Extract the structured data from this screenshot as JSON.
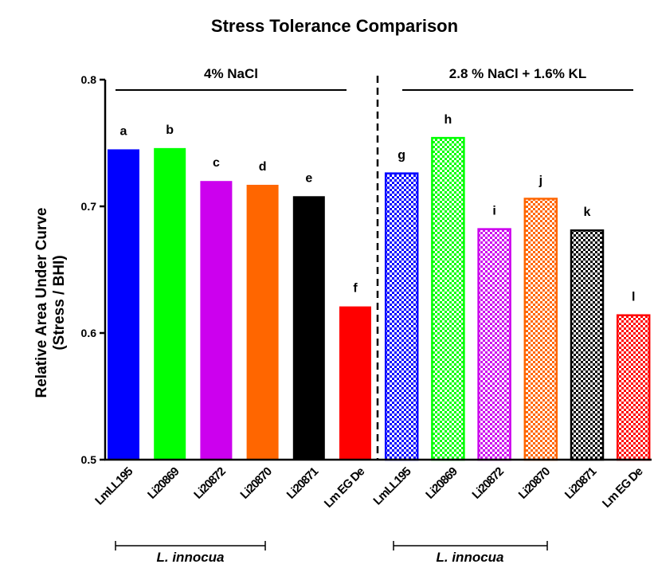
{
  "chart_data": {
    "type": "bar",
    "title": "Stress Tolerance Comparison",
    "y_label": [
      "Relative Area Under Curve",
      "(Stress / BHI)"
    ],
    "categories": [
      "LmLL195",
      "Li20869",
      "Li20872",
      "Li20870",
      "Li20871",
      "Lm EG De",
      "LmLL195",
      "Li20869",
      "Li20872",
      "Li20870",
      "Li20871",
      "Lm EG De"
    ],
    "values": [
      0.745,
      0.746,
      0.72,
      0.717,
      0.708,
      0.621,
      0.726,
      0.754,
      0.682,
      0.706,
      0.681,
      0.614
    ],
    "annotations": [
      "a",
      "b",
      "c",
      "d",
      "e",
      "f",
      "g",
      "h",
      "i",
      "j",
      "k",
      "l"
    ],
    "colors": [
      "#0000ff",
      "#00ff00",
      "#cc00ee",
      "#ff6600",
      "#000000",
      "#ff0000",
      "#0000ff",
      "#00ff00",
      "#cc00ee",
      "#ff6600",
      "#000000",
      "#ff0000"
    ],
    "fills": [
      "solid",
      "solid",
      "solid",
      "solid",
      "solid",
      "solid",
      "checkered",
      "checkered",
      "checkered",
      "checkered",
      "checkered",
      "checkered"
    ],
    "groups": [
      "4% NaCl",
      "2.8 % NaCl + 1.6% KL"
    ],
    "species_label": "L. innocua",
    "ylim": [
      0.5,
      0.8
    ],
    "yticks": [
      0.5,
      0.6,
      0.7,
      0.8
    ]
  }
}
